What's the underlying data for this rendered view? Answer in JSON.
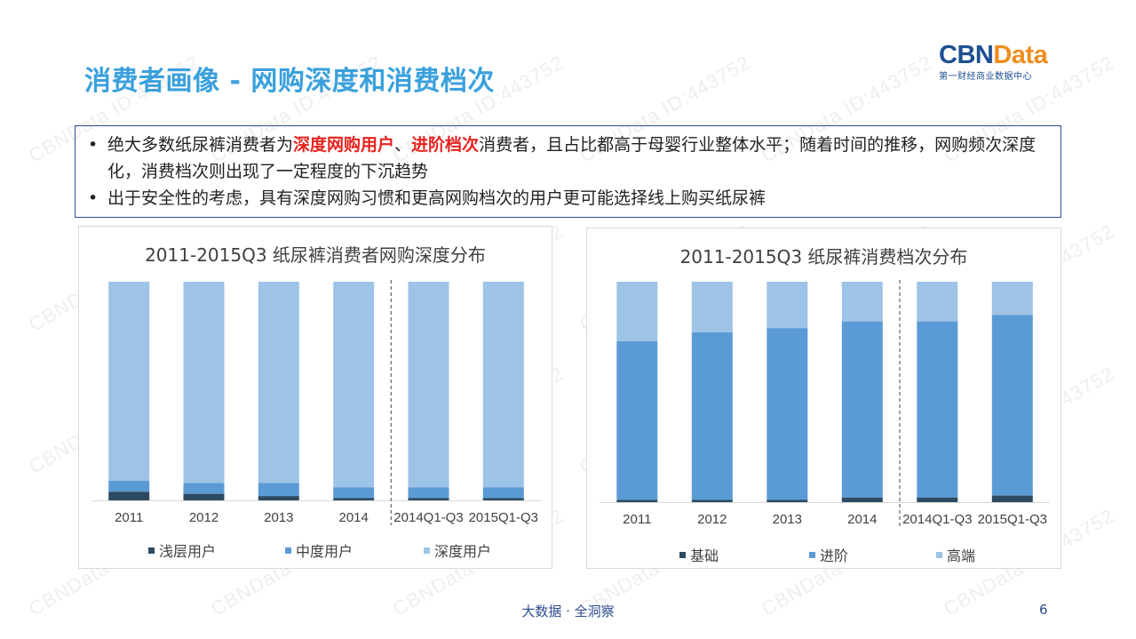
{
  "slide": {
    "title": "消费者画像 - 网购深度和消费档次",
    "footer": "大数据 · 全洞察",
    "page_number": "6"
  },
  "logo": {
    "word_cbn": "CBN",
    "word_data": "Data",
    "subtitle": "第一财经商业数据中心"
  },
  "watermark_text": "CBNData ID:443752",
  "bullets": [
    {
      "segments": [
        {
          "text": "绝大多数纸尿裤消费者为",
          "highlight": false
        },
        {
          "text": "深度网购用户",
          "highlight": true
        },
        {
          "text": "、",
          "highlight": false
        },
        {
          "text": "进阶档次",
          "highlight": true
        },
        {
          "text": "消费者，且占比都高于母婴行业整体水平；随着时间的推移，网购频次深度化，消费档次则出现了一定程度的下沉趋势",
          "highlight": false
        }
      ]
    },
    {
      "segments": [
        {
          "text": "出于安全性的考虑，具有深度网购习惯和更高网购档次的用户更可能选择线上购买纸尿裤",
          "highlight": false
        }
      ]
    }
  ],
  "colors": {
    "title": "#3aa0dc",
    "highlight": "#e8231f",
    "border": "#2a4d8f",
    "dark": "#2e4a60",
    "mid": "#5b9bd5",
    "light": "#9dc3e6"
  },
  "chart_data": [
    {
      "type": "bar",
      "stacked": true,
      "normalized": true,
      "title": "2011-2015Q3 纸尿裤消费者网购深度分布",
      "categories": [
        "2011",
        "2012",
        "2013",
        "2014",
        "2014Q1-Q3",
        "2015Q1-Q3"
      ],
      "series": [
        {
          "name": "浅层用户",
          "color": "#2e4a60",
          "values": [
            4,
            3,
            2,
            1,
            1,
            1
          ]
        },
        {
          "name": "中度用户",
          "color": "#5b9bd5",
          "values": [
            5,
            5,
            6,
            5,
            5,
            5
          ]
        },
        {
          "name": "深度用户",
          "color": "#9dc3e6",
          "values": [
            91,
            92,
            92,
            94,
            94,
            94
          ]
        }
      ],
      "ylim": [
        0,
        100
      ],
      "grid": false,
      "divider_after_index": 3,
      "legend_position": "bottom"
    },
    {
      "type": "bar",
      "stacked": true,
      "normalized": true,
      "title": "2011-2015Q3 纸尿裤消费档次分布",
      "categories": [
        "2011",
        "2012",
        "2013",
        "2014",
        "2014Q1-Q3",
        "2015Q1-Q3"
      ],
      "series": [
        {
          "name": "基础",
          "color": "#2e4a60",
          "values": [
            1,
            1,
            1,
            2,
            2,
            3
          ]
        },
        {
          "name": "进阶",
          "color": "#5b9bd5",
          "values": [
            72,
            76,
            78,
            80,
            80,
            82
          ]
        },
        {
          "name": "高端",
          "color": "#9dc3e6",
          "values": [
            27,
            23,
            21,
            18,
            18,
            15
          ]
        }
      ],
      "ylim": [
        0,
        100
      ],
      "grid": false,
      "divider_after_index": 3,
      "legend_position": "bottom"
    }
  ]
}
